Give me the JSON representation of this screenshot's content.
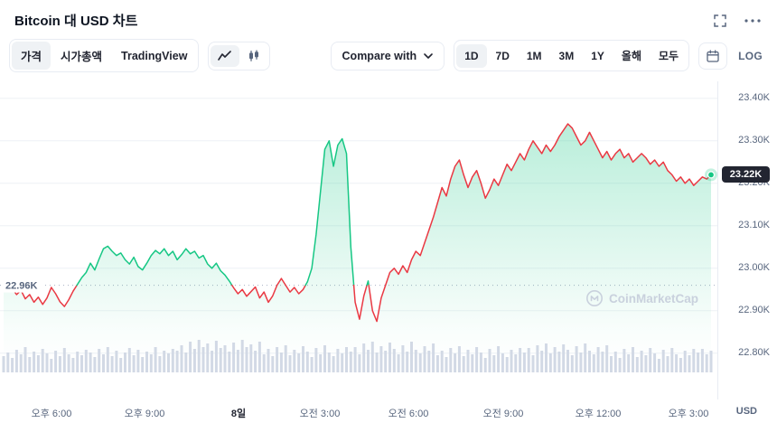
{
  "header": {
    "title": "Bitcoin 대 USD 차트"
  },
  "toolbar": {
    "tabs": [
      "가격",
      "시가총액",
      "TradingView"
    ],
    "compare_label": "Compare with",
    "ranges": [
      "1D",
      "7D",
      "1M",
      "3M",
      "1Y",
      "올해",
      "모두"
    ],
    "active_range": "1D",
    "log_label": "LOG"
  },
  "watermark": {
    "label": "CoinMarketCap"
  },
  "chart_data": {
    "type": "line",
    "title": "Bitcoin 대 USD 차트",
    "unit_label": "USD",
    "legend": "off",
    "grid": "horizontal",
    "prev_close": 22.96,
    "prev_close_label": "22.96K",
    "last_price": 23.22,
    "last_price_label": "23.22K",
    "ylim": [
      22.75,
      23.45
    ],
    "y_ticks": [
      "23.40K",
      "23.30K",
      "23.20K",
      "23.10K",
      "23.00K",
      "22.90K",
      "22.80K"
    ],
    "x_labels": [
      "오후 6:00",
      "오후 9:00",
      "8일",
      "오전 3:00",
      "오전 6:00",
      "오전 9:00",
      "오후 12:00",
      "오후 3:00"
    ],
    "line_color_up": "#16c784",
    "line_color_down": "#ea3943",
    "prices": [
      22.955,
      22.945,
      22.952,
      22.938,
      22.948,
      22.928,
      22.938,
      22.92,
      22.932,
      22.915,
      22.93,
      22.955,
      22.94,
      22.921,
      22.91,
      22.926,
      22.946,
      22.962,
      22.978,
      22.99,
      23.012,
      22.996,
      23.022,
      23.046,
      23.052,
      23.04,
      23.03,
      23.036,
      23.02,
      23.01,
      23.026,
      23.004,
      22.996,
      23.012,
      23.03,
      23.042,
      23.034,
      23.046,
      23.03,
      23.04,
      23.02,
      23.032,
      23.046,
      23.034,
      23.04,
      23.024,
      23.03,
      23.01,
      23.0,
      23.012,
      22.994,
      22.984,
      22.97,
      22.954,
      22.94,
      22.95,
      22.934,
      22.945,
      22.956,
      22.93,
      22.944,
      22.92,
      22.935,
      22.96,
      22.976,
      22.96,
      22.944,
      22.955,
      22.94,
      22.95,
      22.968,
      23.0,
      23.08,
      23.18,
      23.28,
      23.3,
      23.24,
      23.29,
      23.305,
      23.27,
      23.05,
      22.92,
      22.88,
      22.935,
      22.97,
      22.9,
      22.875,
      22.93,
      22.96,
      22.99,
      23.0,
      22.986,
      23.006,
      22.99,
      23.02,
      23.04,
      23.03,
      23.06,
      23.09,
      23.12,
      23.155,
      23.19,
      23.17,
      23.21,
      23.24,
      23.255,
      23.22,
      23.19,
      23.215,
      23.23,
      23.2,
      23.165,
      23.185,
      23.21,
      23.195,
      23.22,
      23.245,
      23.23,
      23.25,
      23.27,
      23.255,
      23.28,
      23.3,
      23.285,
      23.27,
      23.29,
      23.275,
      23.29,
      23.31,
      23.325,
      23.34,
      23.33,
      23.31,
      23.29,
      23.3,
      23.32,
      23.3,
      23.28,
      23.26,
      23.275,
      23.255,
      23.27,
      23.28,
      23.26,
      23.27,
      23.25,
      23.26,
      23.27,
      23.26,
      23.245,
      23.255,
      23.24,
      23.25,
      23.23,
      23.22,
      23.205,
      23.215,
      23.2,
      23.21,
      23.195,
      23.205,
      23.215,
      23.21,
      23.22
    ],
    "volumes": [
      18,
      22,
      16,
      25,
      20,
      28,
      17,
      23,
      19,
      26,
      21,
      15,
      24,
      18,
      27,
      20,
      16,
      23,
      19,
      25,
      22,
      17,
      26,
      20,
      28,
      18,
      24,
      16,
      22,
      27,
      19,
      25,
      17,
      23,
      20,
      28,
      18,
      24,
      21,
      26,
      24,
      30,
      22,
      34,
      26,
      36,
      28,
      32,
      24,
      35,
      27,
      30,
      23,
      33,
      25,
      36,
      28,
      31,
      24,
      34,
      20,
      26,
      18,
      28,
      22,
      30,
      19,
      25,
      21,
      29,
      23,
      17,
      27,
      20,
      30,
      22,
      18,
      26,
      21,
      28,
      23,
      28,
      20,
      32,
      25,
      34,
      22,
      29,
      24,
      33,
      26,
      20,
      30,
      23,
      34,
      25,
      21,
      29,
      24,
      32,
      19,
      24,
      17,
      27,
      21,
      29,
      18,
      25,
      20,
      28,
      22,
      16,
      26,
      19,
      29,
      21,
      17,
      25,
      20,
      27,
      22,
      27,
      19,
      30,
      24,
      32,
      21,
      28,
      23,
      31,
      25,
      19,
      29,
      22,
      32,
      24,
      20,
      28,
      23,
      30,
      18,
      23,
      16,
      26,
      20,
      28,
      17,
      24,
      19,
      27,
      21,
      15,
      25,
      18,
      27,
      20,
      16,
      24,
      19,
      26,
      22,
      26,
      20,
      24
    ]
  }
}
